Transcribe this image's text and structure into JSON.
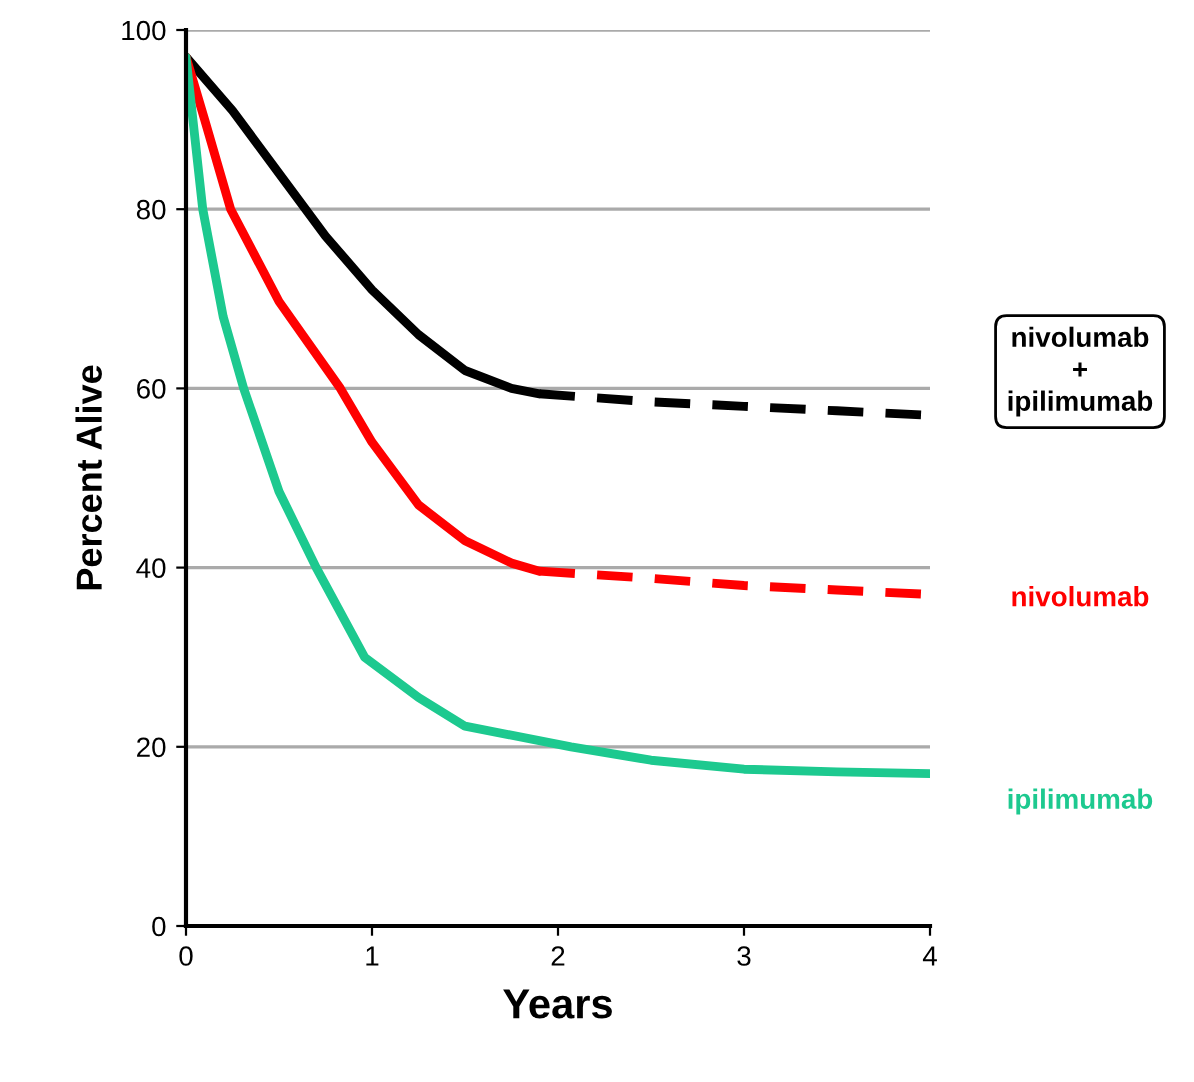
{
  "chart_data": {
    "type": "line",
    "xlabel": "Years",
    "ylabel": "Percent Alive",
    "xlim": [
      0,
      4
    ],
    "ylim": [
      0,
      100
    ],
    "xticks": [
      0,
      1,
      2,
      3,
      4
    ],
    "yticks": [
      0,
      20,
      40,
      60,
      80,
      100
    ],
    "grid": "y",
    "legend": false,
    "marker": "none",
    "series": [
      {
        "name": "nivolumab\n+\nipilimumab",
        "color": "#000000",
        "line_style": "solid",
        "x": [
          0,
          0.25,
          0.5,
          0.75,
          1.0,
          1.25,
          1.5,
          1.75,
          1.9
        ],
        "values": [
          97,
          91,
          84,
          77,
          71,
          66,
          62,
          60,
          59.4
        ]
      },
      {
        "color": "#000000",
        "line_style": "dashed",
        "x": [
          1.9,
          2.5,
          3,
          3.5,
          4
        ],
        "values": [
          59.4,
          58.5,
          58,
          57.5,
          57
        ]
      },
      {
        "name": "nivolumab",
        "color": "#ff0000",
        "line_style": "solid",
        "x": [
          0,
          0.1,
          0.24,
          0.5,
          0.83,
          1.0,
          1.25,
          1.5,
          1.75,
          1.9
        ],
        "values": [
          97,
          90,
          80,
          69.7,
          60,
          54,
          47,
          43,
          40.5,
          39.6
        ]
      },
      {
        "color": "#ff0000",
        "line_style": "dashed",
        "x": [
          1.9,
          2.5,
          3,
          3.5,
          4
        ],
        "values": [
          39.6,
          38.8,
          38,
          37.5,
          37
        ]
      },
      {
        "name": "ipilimumab",
        "color": "#1dc98f",
        "line_style": "solid",
        "x": [
          0,
          0.09,
          0.2,
          0.31,
          0.5,
          0.7,
          0.96,
          1.25,
          1.5,
          2.07,
          2.5,
          3,
          3.5,
          4
        ],
        "values": [
          97,
          80,
          68,
          60,
          48.5,
          40,
          30,
          25.5,
          22.3,
          20,
          18.5,
          17.5,
          17.2,
          17
        ]
      }
    ]
  }
}
